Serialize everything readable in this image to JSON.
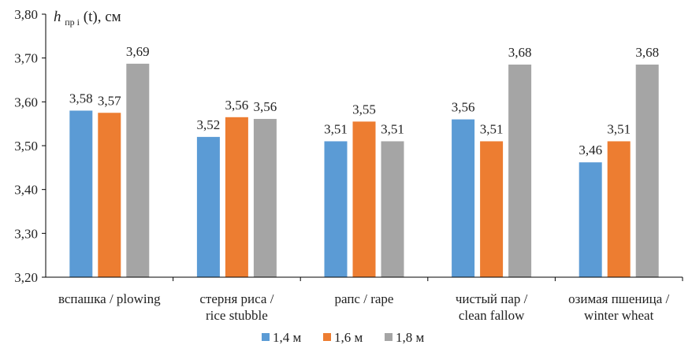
{
  "chart_data": {
    "type": "bar",
    "title": "",
    "ylabel_parts": {
      "h": "h",
      "sub": "пр i",
      "rest": "(t), см"
    },
    "xlabel": "",
    "ylim": [
      3.2,
      3.8
    ],
    "ytick_values": [
      3.2,
      3.3,
      3.4,
      3.5,
      3.6,
      3.7,
      3.8
    ],
    "ytick_labels": [
      "3,20",
      "3,30",
      "3,40",
      "3,50",
      "3,60",
      "3,70",
      "3,80"
    ],
    "grid": false,
    "legend_position": "bottom",
    "categories": [
      [
        "вспашка / plowing"
      ],
      [
        "стерня риса /",
        "rice stubble"
      ],
      [
        "рапс / rape"
      ],
      [
        "чистый пар /",
        "clean fallow"
      ],
      [
        "озимая пшеница /",
        "winter wheat"
      ]
    ],
    "series": [
      {
        "name": "1,4 м",
        "color": "#5B9BD5",
        "values": [
          3.58,
          3.52,
          3.51,
          3.56,
          3.462
        ],
        "labels": [
          "3,58",
          "3,52",
          "3,51",
          "3,56",
          "3,46"
        ]
      },
      {
        "name": "1,6 м",
        "color": "#ED7D31",
        "values": [
          3.575,
          3.565,
          3.555,
          3.51,
          3.51
        ],
        "labels": [
          "3,57",
          "3,56",
          "3,55",
          "3,51",
          "3,51"
        ]
      },
      {
        "name": "1,8 м",
        "color": "#A5A5A5",
        "values": [
          3.687,
          3.561,
          3.51,
          3.685,
          3.685
        ],
        "labels": [
          "3,69",
          "3,56",
          "3,51",
          "3,68",
          "3,68"
        ]
      }
    ]
  }
}
